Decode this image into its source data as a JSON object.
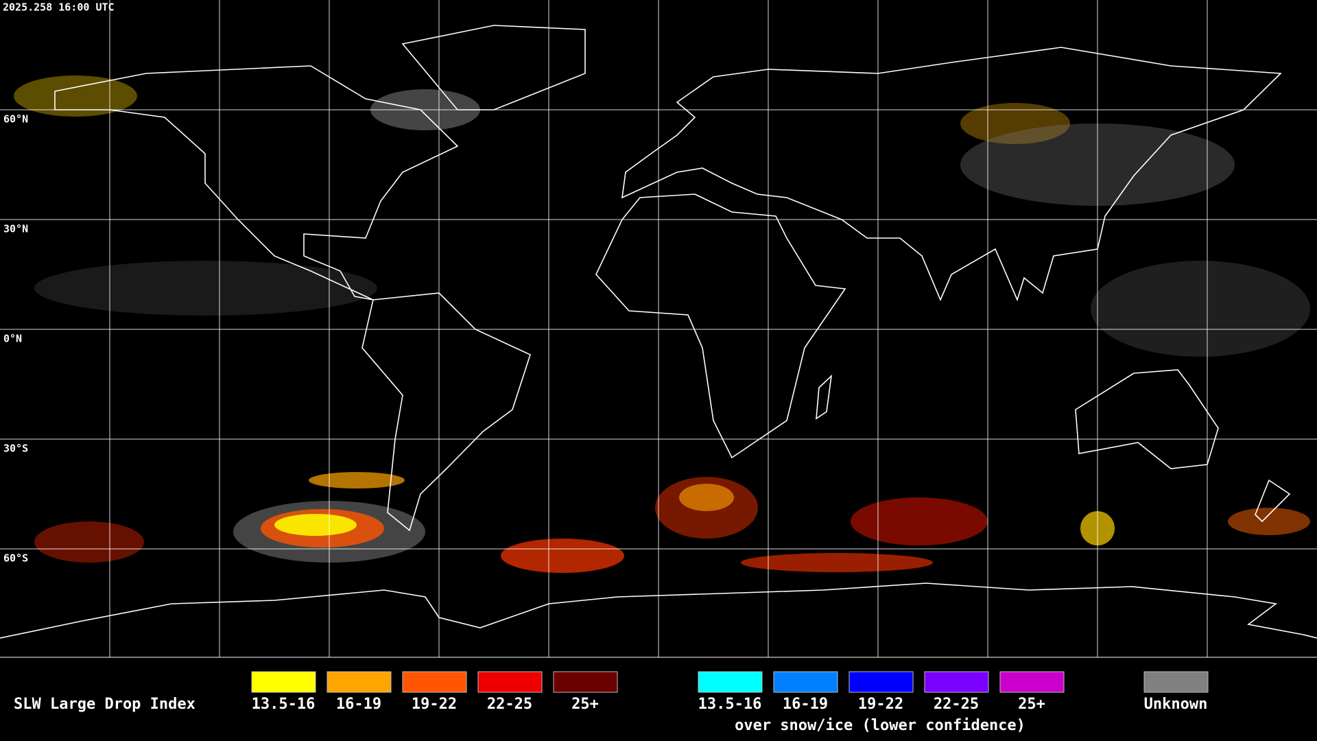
{
  "timestamp": "2025.258 16:00 UTC",
  "lat_labels": [
    "60°N",
    "30°N",
    "0°N",
    "30°S",
    "60°S"
  ],
  "legend": {
    "title": "SLW Large Drop Index",
    "items": [
      {
        "label": "13.5-16",
        "color": "#ffff00"
      },
      {
        "label": "16-19",
        "color": "#ffa500"
      },
      {
        "label": "19-22",
        "color": "#ff5500"
      },
      {
        "label": "22-25",
        "color": "#ee0000"
      },
      {
        "label": "25+",
        "color": "#6b0000"
      }
    ],
    "snow_ice_items": [
      {
        "label": "13.5-16",
        "color": "#00ffff"
      },
      {
        "label": "16-19",
        "color": "#0080ff"
      },
      {
        "label": "19-22",
        "color": "#0000ff"
      },
      {
        "label": "22-25",
        "color": "#7a00ff"
      },
      {
        "label": "25+",
        "color": "#cc00cc"
      }
    ],
    "snow_ice_caption": "over snow/ice (lower confidence)",
    "unknown": {
      "label": "Unknown",
      "color": "#808080"
    }
  }
}
